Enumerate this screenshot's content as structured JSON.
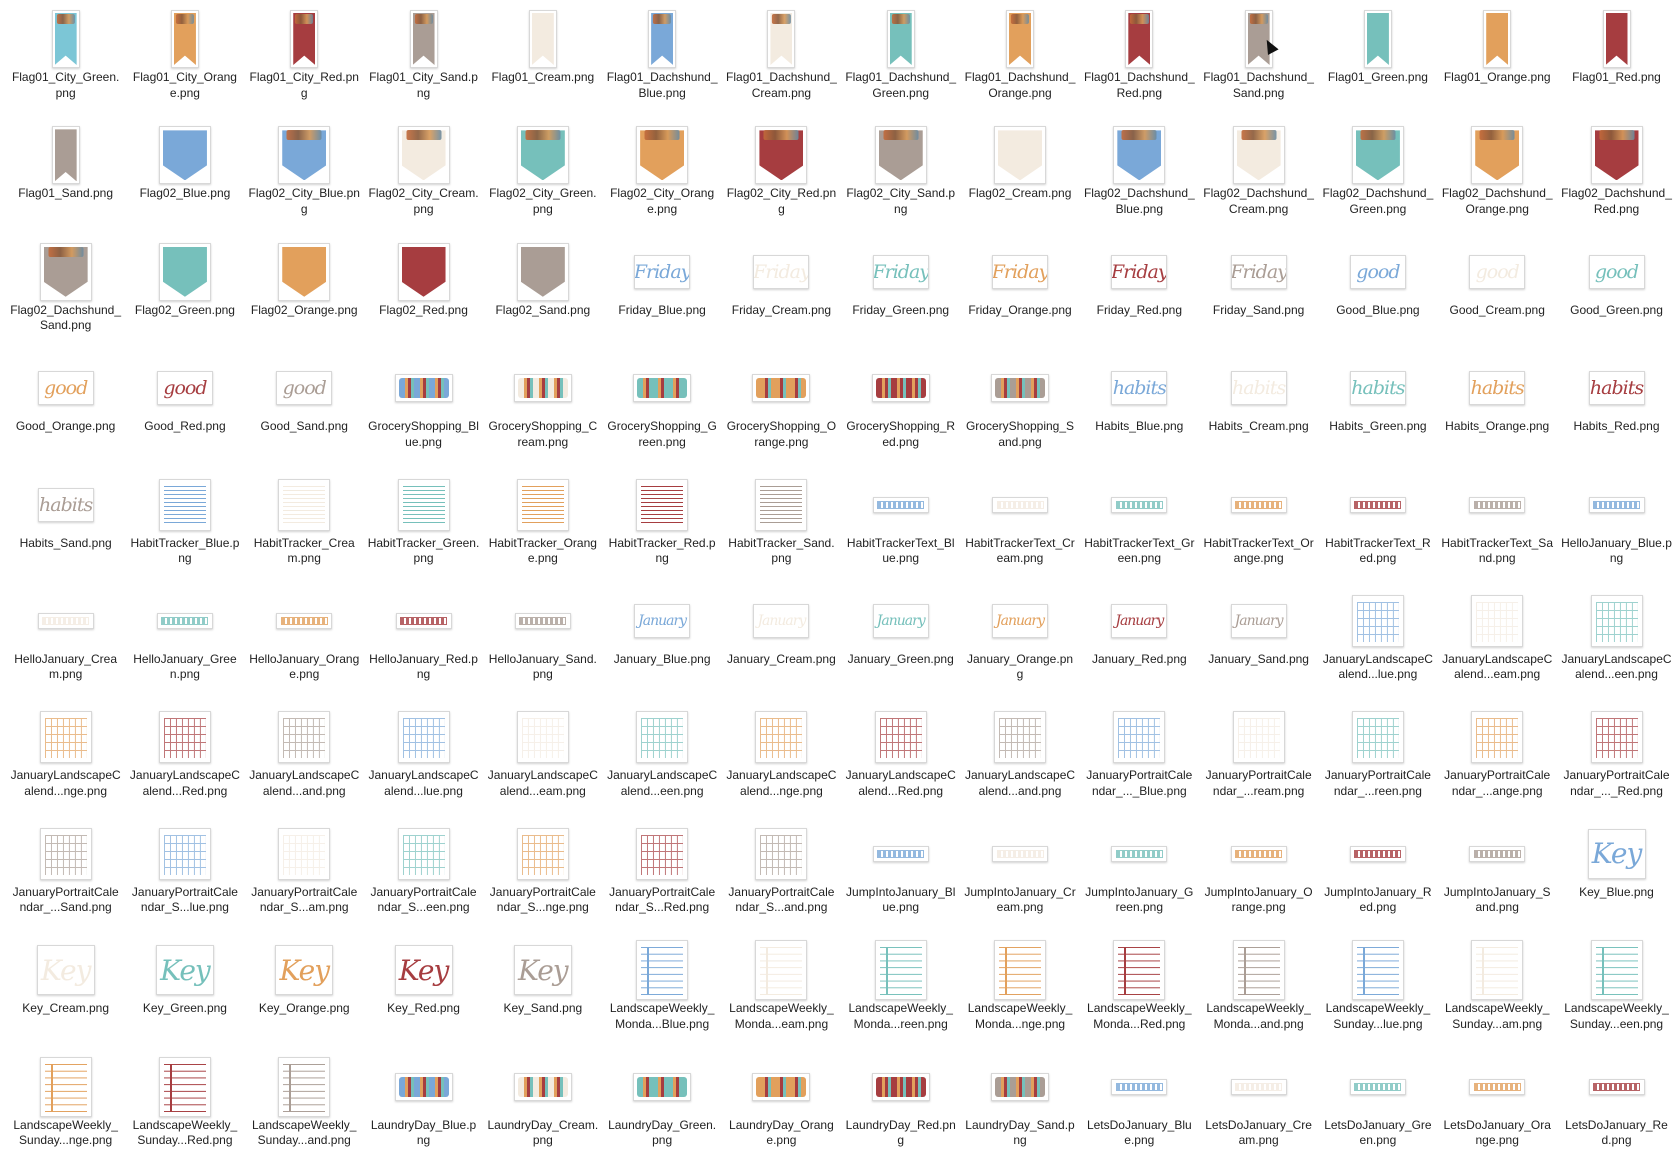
{
  "colors": {
    "Blue": "#7aa8d8",
    "Cream": "#f3ebe0",
    "Green": "#76c0bb",
    "Orange": "#e2a05c",
    "Red": "#a63d40",
    "Sand": "#aa9d95",
    "City_Green": "#7cc6d6"
  },
  "files": [
    {
      "name": "Flag01_City_Green.png",
      "kind": "pennant",
      "color": "City_Green",
      "city": true
    },
    {
      "name": "Flag01_City_Orange.png",
      "kind": "pennant",
      "color": "Orange",
      "city": true
    },
    {
      "name": "Flag01_City_Red.png",
      "kind": "pennant",
      "color": "Red",
      "city": true
    },
    {
      "name": "Flag01_City_Sand.png",
      "kind": "pennant",
      "color": "Sand",
      "city": true
    },
    {
      "name": "Flag01_Cream.png",
      "kind": "pennant",
      "color": "Cream"
    },
    {
      "name": "Flag01_Dachshund_Blue.png",
      "kind": "pennant",
      "color": "Blue",
      "city": true
    },
    {
      "name": "Flag01_Dachshund_Cream.png",
      "kind": "pennant",
      "color": "Cream",
      "city": true
    },
    {
      "name": "Flag01_Dachshund_Green.png",
      "kind": "pennant",
      "color": "Green",
      "city": true
    },
    {
      "name": "Flag01_Dachshund_Orange.png",
      "kind": "pennant",
      "color": "Orange",
      "city": true
    },
    {
      "name": "Flag01_Dachshund_Red.png",
      "kind": "pennant",
      "color": "Red",
      "city": true
    },
    {
      "name": "Flag01_Dachshund_Sand.png",
      "kind": "pennant",
      "color": "Sand",
      "city": true
    },
    {
      "name": "Flag01_Green.png",
      "kind": "pennant",
      "color": "Green"
    },
    {
      "name": "Flag01_Orange.png",
      "kind": "pennant",
      "color": "Orange"
    },
    {
      "name": "Flag01_Red.png",
      "kind": "pennant",
      "color": "Red"
    },
    {
      "name": "Flag01_Sand.png",
      "kind": "pennant",
      "color": "Sand"
    },
    {
      "name": "Flag02_Blue.png",
      "kind": "shield",
      "color": "Blue"
    },
    {
      "name": "Flag02_City_Blue.png",
      "kind": "shield",
      "color": "Blue",
      "city": true
    },
    {
      "name": "Flag02_City_Cream.png",
      "kind": "shield",
      "color": "Cream",
      "city": true
    },
    {
      "name": "Flag02_City_Green.png",
      "kind": "shield",
      "color": "Green",
      "city": true
    },
    {
      "name": "Flag02_City_Orange.png",
      "kind": "shield",
      "color": "Orange",
      "city": true
    },
    {
      "name": "Flag02_City_Red.png",
      "kind": "shield",
      "color": "Red",
      "city": true
    },
    {
      "name": "Flag02_City_Sand.png",
      "kind": "shield",
      "color": "Sand",
      "city": true
    },
    {
      "name": "Flag02_Cream.png",
      "kind": "shield",
      "color": "Cream"
    },
    {
      "name": "Flag02_Dachshund_Blue.png",
      "kind": "shield",
      "color": "Blue",
      "city": true
    },
    {
      "name": "Flag02_Dachshund_Cream.png",
      "kind": "shield",
      "color": "Cream",
      "city": true
    },
    {
      "name": "Flag02_Dachshund_Green.png",
      "kind": "shield",
      "color": "Green",
      "city": true
    },
    {
      "name": "Flag02_Dachshund_Orange.png",
      "kind": "shield",
      "color": "Orange",
      "city": true
    },
    {
      "name": "Flag02_Dachshund_Red.png",
      "kind": "shield",
      "color": "Red",
      "city": true
    },
    {
      "name": "Flag02_Dachshund_Sand.png",
      "kind": "shield",
      "color": "Sand",
      "city": true
    },
    {
      "name": "Flag02_Green.png",
      "kind": "shield",
      "color": "Green"
    },
    {
      "name": "Flag02_Orange.png",
      "kind": "shield",
      "color": "Orange"
    },
    {
      "name": "Flag02_Red.png",
      "kind": "shield",
      "color": "Red"
    },
    {
      "name": "Flag02_Sand.png",
      "kind": "shield",
      "color": "Sand"
    },
    {
      "name": "Friday_Blue.png",
      "kind": "word",
      "color": "Blue",
      "word": "Friday"
    },
    {
      "name": "Friday_Cream.png",
      "kind": "word",
      "color": "Cream",
      "word": "Friday"
    },
    {
      "name": "Friday_Green.png",
      "kind": "word",
      "color": "Green",
      "word": "Friday"
    },
    {
      "name": "Friday_Orange.png",
      "kind": "word",
      "color": "Orange",
      "word": "Friday"
    },
    {
      "name": "Friday_Red.png",
      "kind": "word",
      "color": "Red",
      "word": "Friday"
    },
    {
      "name": "Friday_Sand.png",
      "kind": "word",
      "color": "Sand",
      "word": "Friday"
    },
    {
      "name": "Good_Blue.png",
      "kind": "word",
      "color": "Blue",
      "word": "good"
    },
    {
      "name": "Good_Cream.png",
      "kind": "word",
      "color": "Cream",
      "word": "good"
    },
    {
      "name": "Good_Green.png",
      "kind": "word",
      "color": "Green",
      "word": "good"
    },
    {
      "name": "Good_Orange.png",
      "kind": "word",
      "color": "Orange",
      "word": "good"
    },
    {
      "name": "Good_Red.png",
      "kind": "word",
      "color": "Red",
      "word": "good"
    },
    {
      "name": "Good_Sand.png",
      "kind": "word",
      "color": "Sand",
      "word": "good"
    },
    {
      "name": "GroceryShopping_Blue.png",
      "kind": "banner",
      "color": "Blue"
    },
    {
      "name": "GroceryShopping_Cream.png",
      "kind": "banner",
      "color": "Cream"
    },
    {
      "name": "GroceryShopping_Green.png",
      "kind": "banner",
      "color": "Green"
    },
    {
      "name": "GroceryShopping_Orange.png",
      "kind": "banner",
      "color": "Orange"
    },
    {
      "name": "GroceryShopping_Red.png",
      "kind": "banner",
      "color": "Red"
    },
    {
      "name": "GroceryShopping_Sand.png",
      "kind": "banner",
      "color": "Sand"
    },
    {
      "name": "Habits_Blue.png",
      "kind": "word",
      "color": "Blue",
      "word": "habits"
    },
    {
      "name": "Habits_Cream.png",
      "kind": "word",
      "color": "Cream",
      "word": "habits"
    },
    {
      "name": "Habits_Green.png",
      "kind": "word",
      "color": "Green",
      "word": "habits"
    },
    {
      "name": "Habits_Orange.png",
      "kind": "word",
      "color": "Orange",
      "word": "habits"
    },
    {
      "name": "Habits_Red.png",
      "kind": "word",
      "color": "Red",
      "word": "habits"
    },
    {
      "name": "Habits_Sand.png",
      "kind": "word",
      "color": "Sand",
      "word": "habits"
    },
    {
      "name": "HabitTracker_Blue.png",
      "kind": "sheet-l",
      "color": "Blue",
      "pattern": "lines"
    },
    {
      "name": "HabitTracker_Cream.png",
      "kind": "sheet-l",
      "color": "Cream",
      "pattern": "lines"
    },
    {
      "name": "HabitTracker_Green.png",
      "kind": "sheet-l",
      "color": "Green",
      "pattern": "lines"
    },
    {
      "name": "HabitTracker_Orange.png",
      "kind": "sheet-l",
      "color": "Orange",
      "pattern": "lines"
    },
    {
      "name": "HabitTracker_Red.png",
      "kind": "sheet-l",
      "color": "Red",
      "pattern": "lines"
    },
    {
      "name": "HabitTracker_Sand.png",
      "kind": "sheet-l",
      "color": "Sand",
      "pattern": "lines"
    },
    {
      "name": "HabitTrackerText_Blue.png",
      "kind": "strip",
      "color": "Blue"
    },
    {
      "name": "HabitTrackerText_Cream.png",
      "kind": "strip",
      "color": "Cream"
    },
    {
      "name": "HabitTrackerText_Green.png",
      "kind": "strip",
      "color": "Green"
    },
    {
      "name": "HabitTrackerText_Orange.png",
      "kind": "strip",
      "color": "Orange"
    },
    {
      "name": "HabitTrackerText_Red.png",
      "kind": "strip",
      "color": "Red"
    },
    {
      "name": "HabitTrackerText_Sand.png",
      "kind": "strip",
      "color": "Sand"
    },
    {
      "name": "HelloJanuary_Blue.png",
      "kind": "strip",
      "color": "Blue"
    },
    {
      "name": "HelloJanuary_Cream.png",
      "kind": "strip",
      "color": "Cream"
    },
    {
      "name": "HelloJanuary_Green.png",
      "kind": "strip",
      "color": "Green"
    },
    {
      "name": "HelloJanuary_Orange.png",
      "kind": "strip",
      "color": "Orange"
    },
    {
      "name": "HelloJanuary_Red.png",
      "kind": "strip",
      "color": "Red"
    },
    {
      "name": "HelloJanuary_Sand.png",
      "kind": "strip",
      "color": "Sand"
    },
    {
      "name": "January_Blue.png",
      "kind": "word",
      "color": "Blue",
      "word": "January"
    },
    {
      "name": "January_Cream.png",
      "kind": "word",
      "color": "Cream",
      "word": "January"
    },
    {
      "name": "January_Green.png",
      "kind": "word",
      "color": "Green",
      "word": "January"
    },
    {
      "name": "January_Orange.png",
      "kind": "word",
      "color": "Orange",
      "word": "January"
    },
    {
      "name": "January_Red.png",
      "kind": "word",
      "color": "Red",
      "word": "January"
    },
    {
      "name": "January_Sand.png",
      "kind": "word",
      "color": "Sand",
      "word": "January"
    },
    {
      "name": "JanuaryLandscapeCalend...lue.png",
      "kind": "sheet-l",
      "color": "Blue",
      "pattern": "grid"
    },
    {
      "name": "JanuaryLandscapeCalend...eam.png",
      "kind": "sheet-l",
      "color": "Cream",
      "pattern": "grid"
    },
    {
      "name": "JanuaryLandscapeCalend...een.png",
      "kind": "sheet-l",
      "color": "Green",
      "pattern": "grid"
    },
    {
      "name": "JanuaryLandscapeCalend...nge.png",
      "kind": "sheet-l",
      "color": "Orange",
      "pattern": "grid"
    },
    {
      "name": "JanuaryLandscapeCalend...Red.png",
      "kind": "sheet-l",
      "color": "Red",
      "pattern": "grid"
    },
    {
      "name": "JanuaryLandscapeCalend...and.png",
      "kind": "sheet-l",
      "color": "Sand",
      "pattern": "grid"
    },
    {
      "name": "JanuaryLandscapeCalend...lue.png",
      "kind": "sheet-l",
      "color": "Blue",
      "pattern": "grid"
    },
    {
      "name": "JanuaryLandscapeCalend...eam.png",
      "kind": "sheet-l",
      "color": "Cream",
      "pattern": "grid"
    },
    {
      "name": "JanuaryLandscapeCalend...een.png",
      "kind": "sheet-l",
      "color": "Green",
      "pattern": "grid"
    },
    {
      "name": "JanuaryLandscapeCalend...nge.png",
      "kind": "sheet-l",
      "color": "Orange",
      "pattern": "grid"
    },
    {
      "name": "JanuaryLandscapeCalend...Red.png",
      "kind": "sheet-l",
      "color": "Red",
      "pattern": "grid"
    },
    {
      "name": "JanuaryLandscapeCalend...and.png",
      "kind": "sheet-l",
      "color": "Sand",
      "pattern": "grid"
    },
    {
      "name": "JanuaryPortraitCalendar_..._Blue.png",
      "kind": "sheet-l",
      "color": "Blue",
      "pattern": "grid"
    },
    {
      "name": "JanuaryPortraitCalendar_...ream.png",
      "kind": "sheet-l",
      "color": "Cream",
      "pattern": "grid"
    },
    {
      "name": "JanuaryPortraitCalendar_...reen.png",
      "kind": "sheet-l",
      "color": "Green",
      "pattern": "grid"
    },
    {
      "name": "JanuaryPortraitCalendar_...ange.png",
      "kind": "sheet-l",
      "color": "Orange",
      "pattern": "grid"
    },
    {
      "name": "JanuaryPortraitCalendar_..._Red.png",
      "kind": "sheet-l",
      "color": "Red",
      "pattern": "grid"
    },
    {
      "name": "JanuaryPortraitCalendar_...Sand.png",
      "kind": "sheet-l",
      "color": "Sand",
      "pattern": "grid"
    },
    {
      "name": "JanuaryPortraitCalendar_S...lue.png",
      "kind": "sheet-l",
      "color": "Blue",
      "pattern": "grid"
    },
    {
      "name": "JanuaryPortraitCalendar_S...am.png",
      "kind": "sheet-l",
      "color": "Cream",
      "pattern": "grid"
    },
    {
      "name": "JanuaryPortraitCalendar_S...een.png",
      "kind": "sheet-l",
      "color": "Green",
      "pattern": "grid"
    },
    {
      "name": "JanuaryPortraitCalendar_S...nge.png",
      "kind": "sheet-l",
      "color": "Orange",
      "pattern": "grid"
    },
    {
      "name": "JanuaryPortraitCalendar_S...Red.png",
      "kind": "sheet-l",
      "color": "Red",
      "pattern": "grid"
    },
    {
      "name": "JanuaryPortraitCalendar_S...and.png",
      "kind": "sheet-l",
      "color": "Sand",
      "pattern": "grid"
    },
    {
      "name": "JumpIntoJanuary_Blue.png",
      "kind": "strip",
      "color": "Blue"
    },
    {
      "name": "JumpIntoJanuary_Cream.png",
      "kind": "strip",
      "color": "Cream"
    },
    {
      "name": "JumpIntoJanuary_Green.png",
      "kind": "strip",
      "color": "Green"
    },
    {
      "name": "JumpIntoJanuary_Orange.png",
      "kind": "strip",
      "color": "Orange"
    },
    {
      "name": "JumpIntoJanuary_Red.png",
      "kind": "strip",
      "color": "Red"
    },
    {
      "name": "JumpIntoJanuary_Sand.png",
      "kind": "strip",
      "color": "Sand"
    },
    {
      "name": "Key_Blue.png",
      "kind": "word-big",
      "color": "Blue",
      "word": "Key"
    },
    {
      "name": "Key_Cream.png",
      "kind": "word-big",
      "color": "Cream",
      "word": "Key"
    },
    {
      "name": "Key_Green.png",
      "kind": "word-big",
      "color": "Green",
      "word": "Key"
    },
    {
      "name": "Key_Orange.png",
      "kind": "word-big",
      "color": "Orange",
      "word": "Key"
    },
    {
      "name": "Key_Red.png",
      "kind": "word-big",
      "color": "Red",
      "word": "Key"
    },
    {
      "name": "Key_Sand.png",
      "kind": "word-big",
      "color": "Sand",
      "word": "Key"
    },
    {
      "name": "LandscapeWeekly_Monda...Blue.png",
      "kind": "sheet-p",
      "color": "Blue",
      "pattern": "rows"
    },
    {
      "name": "LandscapeWeekly_Monda...eam.png",
      "kind": "sheet-p",
      "color": "Cream",
      "pattern": "rows"
    },
    {
      "name": "LandscapeWeekly_Monda...reen.png",
      "kind": "sheet-p",
      "color": "Green",
      "pattern": "rows"
    },
    {
      "name": "LandscapeWeekly_Monda...nge.png",
      "kind": "sheet-p",
      "color": "Orange",
      "pattern": "rows"
    },
    {
      "name": "LandscapeWeekly_Monda...Red.png",
      "kind": "sheet-p",
      "color": "Red",
      "pattern": "rows"
    },
    {
      "name": "LandscapeWeekly_Monda...and.png",
      "kind": "sheet-p",
      "color": "Sand",
      "pattern": "rows"
    },
    {
      "name": "LandscapeWeekly_Sunday...lue.png",
      "kind": "sheet-p",
      "color": "Blue",
      "pattern": "rows"
    },
    {
      "name": "LandscapeWeekly_Sunday...am.png",
      "kind": "sheet-p",
      "color": "Cream",
      "pattern": "rows"
    },
    {
      "name": "LandscapeWeekly_Sunday...een.png",
      "kind": "sheet-p",
      "color": "Green",
      "pattern": "rows"
    },
    {
      "name": "LandscapeWeekly_Sunday...nge.png",
      "kind": "sheet-p",
      "color": "Orange",
      "pattern": "rows"
    },
    {
      "name": "LandscapeWeekly_Sunday...Red.png",
      "kind": "sheet-p",
      "color": "Red",
      "pattern": "rows"
    },
    {
      "name": "LandscapeWeekly_Sunday...and.png",
      "kind": "sheet-p",
      "color": "Sand",
      "pattern": "rows"
    },
    {
      "name": "LaundryDay_Blue.png",
      "kind": "banner",
      "color": "Blue"
    },
    {
      "name": "LaundryDay_Cream.png",
      "kind": "banner",
      "color": "Cream"
    },
    {
      "name": "LaundryDay_Green.png",
      "kind": "banner",
      "color": "Green"
    },
    {
      "name": "LaundryDay_Orange.png",
      "kind": "banner",
      "color": "Orange"
    },
    {
      "name": "LaundryDay_Red.png",
      "kind": "banner",
      "color": "Red"
    },
    {
      "name": "LaundryDay_Sand.png",
      "kind": "banner",
      "color": "Sand"
    },
    {
      "name": "LetsDoJanuary_Blue.png",
      "kind": "strip",
      "color": "Blue"
    },
    {
      "name": "LetsDoJanuary_Cream.png",
      "kind": "strip",
      "color": "Cream"
    },
    {
      "name": "LetsDoJanuary_Green.png",
      "kind": "strip",
      "color": "Green"
    },
    {
      "name": "LetsDoJanuary_Orange.png",
      "kind": "strip",
      "color": "Orange"
    },
    {
      "name": "LetsDoJanuary_Red.png",
      "kind": "strip",
      "color": "Red"
    }
  ]
}
